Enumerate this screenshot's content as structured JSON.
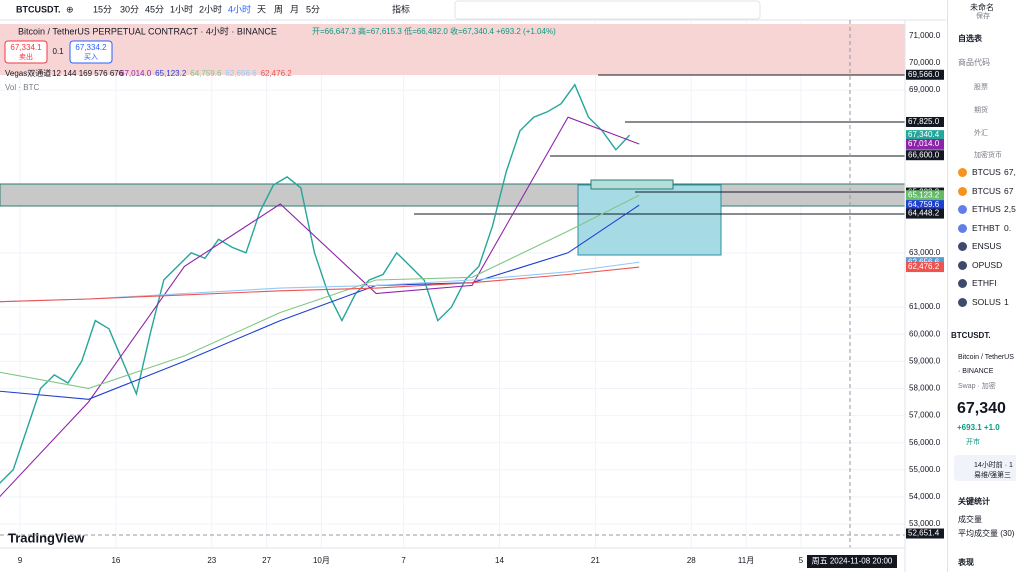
{
  "toolbar": {
    "symbol": "BTCUSDT.",
    "intervals": [
      "15分",
      "30分",
      "45分",
      "1小时",
      "2小时",
      "4小时",
      "天",
      "周",
      "月",
      "5分"
    ],
    "indicators": "指标"
  },
  "legend": {
    "title": "Bitcoin / TetherUS PERPETUAL CONTRACT · 4小时 · BINANCE",
    "ohlc": "开=66,647.3 高=67,615.3 低=66,482.0 收=67,340.4 +693.2 (+1.04%)",
    "sell_price": "67,334.1",
    "sell": "卖出",
    "spread": "0.1",
    "buy_price": "67,334.2",
    "buy": "买入",
    "indicator": "Vegas双通道",
    "indicator_params": "12 144 169 576 676",
    "indicator_values": [
      "67,014.0",
      "65,123.2",
      "64,759.6",
      "62,656.6",
      "62,476.2"
    ],
    "volume": "Vol · BTC"
  },
  "logo": "TradingView",
  "crosshair_time": "周五 2024-11-08 20:00",
  "chart_data": [
    {
      "type": "line",
      "xlim": [
        7.54,
        73.6
      ],
      "ylim": [
        52117,
        71438
      ],
      "xticks": [
        9,
        16,
        23,
        27,
        {
          "value": 31,
          "label": "10月"
        },
        {
          "value": 37,
          "label": "7"
        },
        {
          "value": 44,
          "label": "14"
        },
        {
          "value": 51,
          "label": "21"
        },
        {
          "value": 58,
          "label": "28"
        },
        {
          "value": 62,
          "label": "11月"
        },
        {
          "value": 66,
          "label": "5"
        }
      ],
      "yticks": [
        {
          "value": 71000,
          "label": "71,000.0"
        },
        {
          "value": 70000,
          "label": "70,000.0"
        },
        {
          "value": 69000,
          "label": "69,000.0"
        },
        {
          "value": 63000,
          "label": "63,000.0"
        },
        {
          "value": 61000,
          "label": "61,000.0"
        },
        {
          "value": 60000,
          "label": "60,000.0"
        },
        {
          "value": 59000,
          "label": "59,000.0"
        },
        {
          "value": 58000,
          "label": "58,000.0"
        },
        {
          "value": 57000,
          "label": "57,000.0"
        },
        {
          "value": 56000,
          "label": "56,000.0"
        },
        {
          "value": 55000,
          "label": "55,000.0"
        },
        {
          "value": 54000,
          "label": "54,000.0"
        },
        {
          "value": 53000,
          "label": "53,000.0"
        }
      ],
      "grid": true,
      "x": [
        7.5,
        8.5,
        9.5,
        10.5,
        11.5,
        12.5,
        13.5,
        14.5,
        15.5,
        16.5,
        17.5,
        18.5,
        19.5,
        20.5,
        21.5,
        22.5,
        23.5,
        24.5,
        25.5,
        26.5,
        27.5,
        28.5,
        29.5,
        30.5,
        31.5,
        32.5,
        33.5,
        34.5,
        35.5,
        36.5,
        37.5,
        38.5,
        39.5,
        40.5,
        41.5,
        42.5,
        43.5,
        44.5,
        45.5,
        46.5,
        47.5,
        48.5,
        49.5,
        50.5,
        51.5,
        52.5,
        53.5
      ],
      "series": [
        {
          "name": "BTCUSDT.",
          "color": "#26a69a",
          "values": [
            54500,
            55000,
            56500,
            58000,
            58500,
            58200,
            59000,
            60500,
            60200,
            59000,
            57800,
            60000,
            62000,
            62500,
            63000,
            62800,
            63500,
            63200,
            63000,
            64500,
            65500,
            65800,
            65400,
            63000,
            61500,
            60500,
            61500,
            62000,
            62200,
            63000,
            62500,
            62000,
            60500,
            61000,
            62000,
            62500,
            64000,
            66000,
            67500,
            68000,
            68200,
            68500,
            69200,
            68000,
            67500,
            66800,
            67340
          ]
        }
      ],
      "price_tags": [
        {
          "value": 69566,
          "label": "69,566.0",
          "color": "#131722"
        },
        {
          "value": 67825,
          "label": "67,825.0",
          "color": "#131722"
        },
        {
          "value": 67340.4,
          "label": "67,340.4",
          "color": "#26a69a"
        },
        {
          "value": 67014,
          "label": "67,014.0",
          "color": "#8e24aa"
        },
        {
          "value": 66600,
          "label": "66,600.0",
          "color": "#131722"
        },
        {
          "value": 65222.3,
          "label": "65,222.3",
          "color": "#131722"
        },
        {
          "value": 65123.2,
          "label": "65,123.2",
          "color": "#66bb6a"
        },
        {
          "value": 64759.6,
          "label": "64,759.6",
          "color": "#1e3fcf"
        },
        {
          "value": 64448.2,
          "label": "64,448.2",
          "color": "#131722"
        },
        {
          "value": 62656.6,
          "label": "62,656.6",
          "color": "#5b9bd5"
        },
        {
          "value": 62476.2,
          "label": "62,476.2",
          "color": "#ef5350"
        },
        {
          "value": 52651.4,
          "label": "52,651.4",
          "color": "#131722"
        }
      ],
      "countdown": "01:36:14"
    },
    {
      "type": "line",
      "xlim": [
        7.54,
        73.6
      ],
      "ylim": [
        52117,
        71438
      ],
      "x": [
        7.5,
        14,
        21,
        28,
        35,
        42,
        49,
        54.2
      ],
      "series": [
        {
          "name": "12",
          "color": "#8e24aa",
          "values": [
            54000,
            57500,
            62500,
            64800,
            61500,
            61800,
            68000,
            67014
          ]
        },
        {
          "name": "144",
          "color": "#1e3fcf",
          "values": [
            57900,
            57600,
            59000,
            60500,
            61800,
            61900,
            63000,
            64759.6
          ]
        },
        {
          "name": "169",
          "color": "#81c784",
          "values": [
            58600,
            58000,
            59200,
            60800,
            62000,
            62100,
            63800,
            65123.2
          ]
        },
        {
          "name": "576",
          "color": "#90caf9",
          "values": [
            61200,
            61300,
            61500,
            61700,
            61800,
            62000,
            62300,
            62656.6
          ]
        },
        {
          "name": "676",
          "color": "#ef5350",
          "values": [
            61200,
            61300,
            61450,
            61600,
            61700,
            61900,
            62200,
            62476.2
          ]
        }
      ]
    }
  ],
  "panel": {
    "user": "未命名",
    "save": "保存",
    "watchlist": "自选表",
    "code_col": "商品代码",
    "groups": [
      "股票",
      "期货",
      "外汇",
      "加密货币"
    ],
    "rows": [
      [
        "BTCUS",
        "67,"
      ],
      [
        "BTCUS",
        "67"
      ],
      [
        "ETHUS",
        "2,5"
      ],
      [
        "ETHBT",
        "0."
      ],
      [
        "ENSUS",
        ""
      ],
      [
        "OPUSD",
        ""
      ],
      [
        "ETHFI",
        ""
      ],
      [
        "SOLUS",
        "1"
      ]
    ],
    "detail_symbol": "BTCUSDT.",
    "detail_name": "Bitcoin / TetherUS",
    "exchange": "· BINANCE",
    "kind": "Swap · 加密",
    "price": "67,340",
    "change": "+693.1 +1.0",
    "status": "开市",
    "news_time": "14小时前 · 1",
    "news_text": "易维/强第三",
    "stats": "关键统计",
    "volume": "成交量",
    "avg_volume": "平均成交量 (30)",
    "performance": "表现"
  }
}
